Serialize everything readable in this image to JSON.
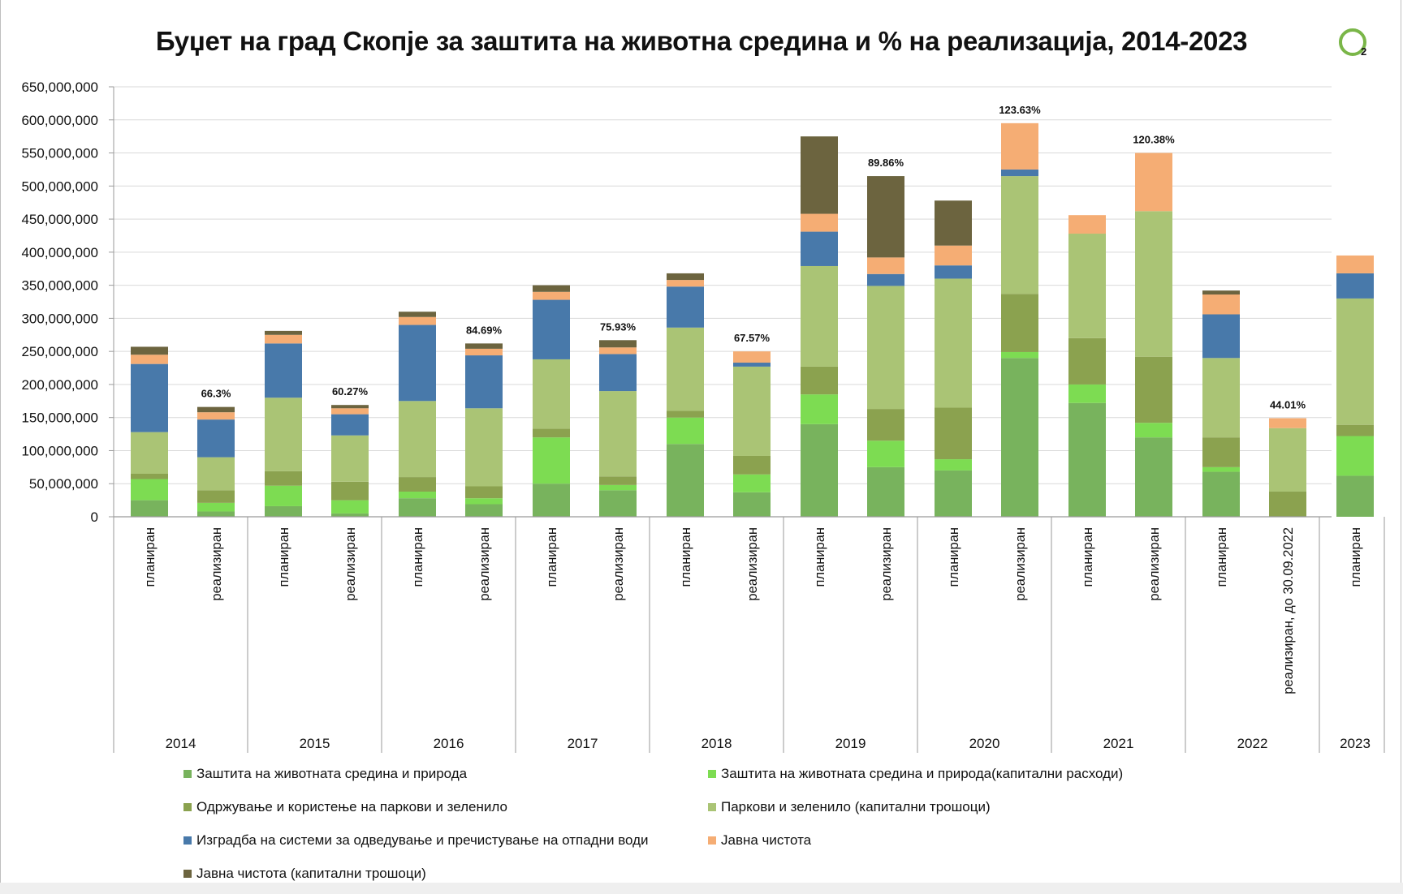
{
  "slide": {
    "title": "Буџет на град Скопје за заштита на животна средина и % на реализација, 2014-2023",
    "page_number": "2",
    "logo_color": "#7ab648"
  },
  "chart_data": {
    "type": "bar",
    "stacked": true,
    "title": "Буџет на град Скопје за заштита на животна средина и % на реализација, 2014-2023",
    "ylim": [
      0,
      650000000
    ],
    "yticks": [
      "0",
      "50,000,000",
      "100,000,000",
      "150,000,000",
      "200,000,000",
      "250,000,000",
      "300,000,000",
      "350,000,000",
      "400,000,000",
      "450,000,000",
      "500,000,000",
      "550,000,000",
      "600,000,000",
      "650,000,000"
    ],
    "grid": true,
    "legend_position": "bottom",
    "categories": [
      {
        "year": "2014",
        "label": "планиран"
      },
      {
        "year": "2014",
        "label": "реализиран"
      },
      {
        "year": "2015",
        "label": "планиран"
      },
      {
        "year": "2015",
        "label": "реализиран"
      },
      {
        "year": "2016",
        "label": "планиран"
      },
      {
        "year": "2016",
        "label": "реализиран"
      },
      {
        "year": "2017",
        "label": "планиран"
      },
      {
        "year": "2017",
        "label": "реализиран"
      },
      {
        "year": "2018",
        "label": "планиран"
      },
      {
        "year": "2018",
        "label": "реализиран"
      },
      {
        "year": "2019",
        "label": "планиран"
      },
      {
        "year": "2019",
        "label": "реализиран"
      },
      {
        "year": "2020",
        "label": "планиран"
      },
      {
        "year": "2020",
        "label": "реализиран"
      },
      {
        "year": "2021",
        "label": "планиран"
      },
      {
        "year": "2021",
        "label": "реализиран"
      },
      {
        "year": "2022",
        "label": "планиран"
      },
      {
        "year": "2022",
        "label": "реализиран, до 30.09.2022"
      },
      {
        "year": "2023",
        "label": "планиран"
      }
    ],
    "year_groups": [
      {
        "year": "2014",
        "count": 2
      },
      {
        "year": "2015",
        "count": 2
      },
      {
        "year": "2016",
        "count": 2
      },
      {
        "year": "2017",
        "count": 2
      },
      {
        "year": "2018",
        "count": 2
      },
      {
        "year": "2019",
        "count": 2
      },
      {
        "year": "2020",
        "count": 2
      },
      {
        "year": "2021",
        "count": 2
      },
      {
        "year": "2022",
        "count": 2
      },
      {
        "year": "2023",
        "count": 1
      }
    ],
    "series": [
      {
        "name": "Заштита на животната средина и природа",
        "color": "#78b35d",
        "values": [
          25000000,
          8000000,
          16000000,
          5000000,
          28000000,
          19000000,
          50000000,
          40000000,
          110000000,
          37000000,
          140000000,
          75000000,
          70000000,
          240000000,
          172000000,
          120000000,
          68000000,
          0,
          62000000
        ]
      },
      {
        "name": "Заштита на животната средина и природа(капитални расходи)",
        "color": "#7ddc52",
        "values": [
          32000000,
          13000000,
          31000000,
          20000000,
          10000000,
          9000000,
          70000000,
          8000000,
          40000000,
          27000000,
          45000000,
          40000000,
          17000000,
          9000000,
          28000000,
          22000000,
          7000000,
          0,
          60000000
        ]
      },
      {
        "name": "Одржување и користење на паркови и зеленило",
        "color": "#8ba24f",
        "values": [
          8000000,
          19000000,
          22000000,
          28000000,
          22000000,
          18000000,
          13000000,
          13000000,
          10000000,
          28000000,
          42000000,
          48000000,
          78000000,
          88000000,
          70000000,
          100000000,
          45000000,
          38000000,
          17000000
        ]
      },
      {
        "name": "Паркови и зеленило (капитални трошоци)",
        "color": "#aac475",
        "values": [
          63000000,
          50000000,
          111000000,
          70000000,
          115000000,
          118000000,
          105000000,
          129000000,
          126000000,
          135000000,
          152000000,
          186000000,
          195000000,
          178000000,
          158000000,
          220000000,
          120000000,
          96000000,
          191000000
        ]
      },
      {
        "name": "Изградба на системи за одведување и пречистување на отпадни води",
        "color": "#4879aa",
        "values": [
          103000000,
          57000000,
          82000000,
          32000000,
          115000000,
          80000000,
          90000000,
          56000000,
          62000000,
          6000000,
          52000000,
          18000000,
          20000000,
          10000000,
          0,
          0,
          66000000,
          0,
          38000000
        ]
      },
      {
        "name": "Јавна чистота",
        "color": "#f5ad74",
        "values": [
          14000000,
          11000000,
          13000000,
          9000000,
          12000000,
          10000000,
          12000000,
          10000000,
          10000000,
          17000000,
          27000000,
          25000000,
          30000000,
          70000000,
          28000000,
          88000000,
          30000000,
          15000000,
          27000000
        ]
      },
      {
        "name": "Јавна чистота (капитални трошоци)",
        "color": "#6c643f",
        "values": [
          12000000,
          8000000,
          6000000,
          5000000,
          8000000,
          8000000,
          10000000,
          11000000,
          10000000,
          0,
          117000000,
          123000000,
          68000000,
          0,
          0,
          0,
          6000000,
          0,
          0
        ]
      }
    ],
    "annotations": [
      {
        "index": 1,
        "text": "66.3%"
      },
      {
        "index": 3,
        "text": "60.27%"
      },
      {
        "index": 5,
        "text": "84.69%"
      },
      {
        "index": 7,
        "text": "75.93%"
      },
      {
        "index": 9,
        "text": "67.57%"
      },
      {
        "index": 11,
        "text": "89.86%"
      },
      {
        "index": 13,
        "text": "123.63%"
      },
      {
        "index": 15,
        "text": "120.38%"
      },
      {
        "index": 17,
        "text": "44.01%"
      }
    ]
  }
}
